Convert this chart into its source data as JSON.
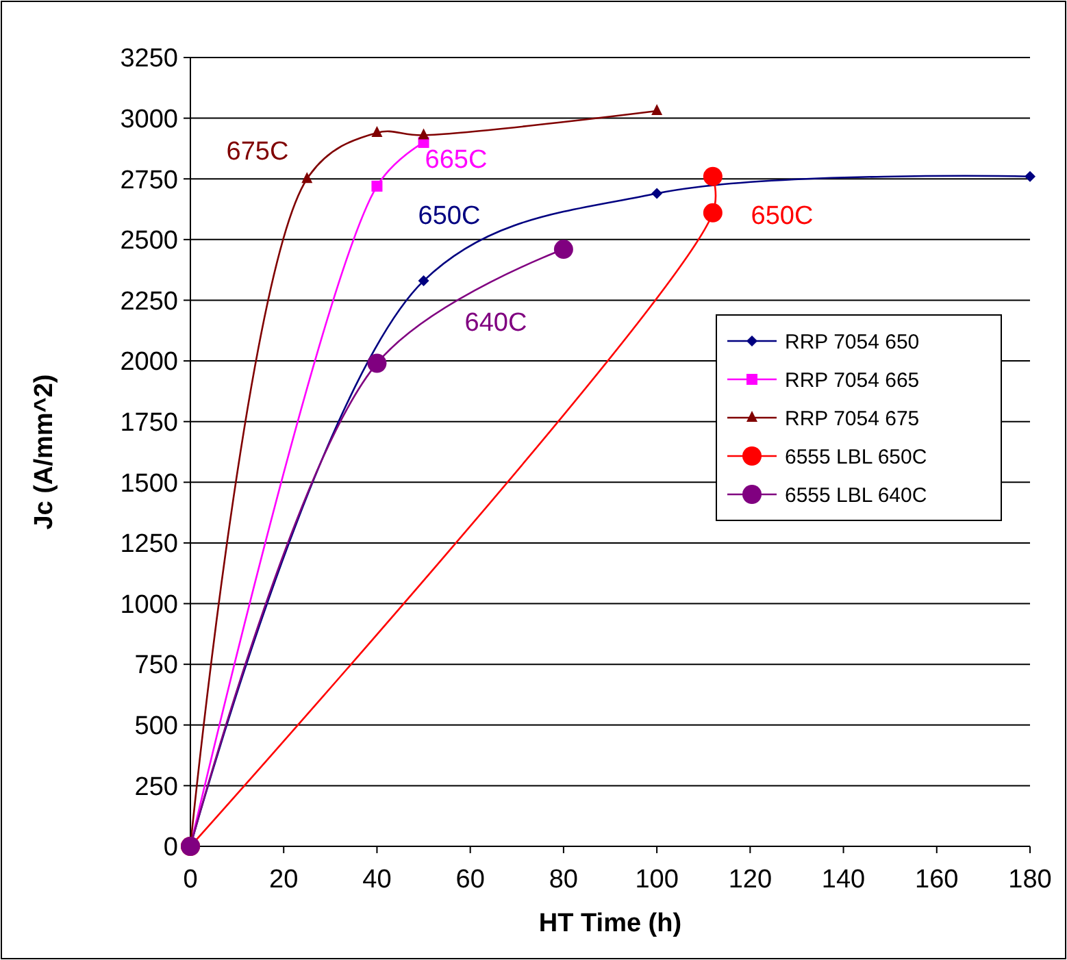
{
  "chart_data": {
    "type": "line",
    "xlabel": "HT Time (h)",
    "ylabel": "Jc (A/mm^2)",
    "xlim": [
      0,
      180
    ],
    "xticks": [
      0,
      20,
      40,
      60,
      80,
      100,
      120,
      140,
      160,
      180
    ],
    "ylim": [
      0,
      3250
    ],
    "yticks": [
      0,
      250,
      500,
      750,
      1000,
      1250,
      1500,
      1750,
      2000,
      2250,
      2500,
      2750,
      3000,
      3250
    ],
    "grid": "y",
    "legend": "right",
    "series": [
      {
        "name": "RRP 7054 650",
        "color": "#000080",
        "marker": "diamond",
        "x": [
          0,
          50,
          100,
          180
        ],
        "values": [
          0,
          2330,
          2690,
          2760
        ]
      },
      {
        "name": "RRP 7054 665",
        "color": "#ff00ff",
        "marker": "square",
        "x": [
          0,
          40,
          50
        ],
        "values": [
          0,
          2720,
          2900
        ]
      },
      {
        "name": "RRP 7054 675",
        "color": "#800000",
        "marker": "triangle",
        "x": [
          0,
          25,
          40,
          50,
          100
        ],
        "values": [
          0,
          2750,
          2940,
          2930,
          3030
        ]
      },
      {
        "name": "6555 LBL 650C",
        "color": "#ff0000",
        "marker": "circle",
        "x": [
          0,
          112,
          112
        ],
        "values": [
          0,
          2610,
          2760
        ]
      },
      {
        "name": "6555 LBL 640C",
        "color": "#800080",
        "marker": "circle",
        "x": [
          0,
          40,
          80
        ],
        "values": [
          0,
          1990,
          2460
        ]
      }
    ],
    "annotations": [
      "675C",
      "665C",
      "650C",
      "640C",
      "650C"
    ]
  }
}
